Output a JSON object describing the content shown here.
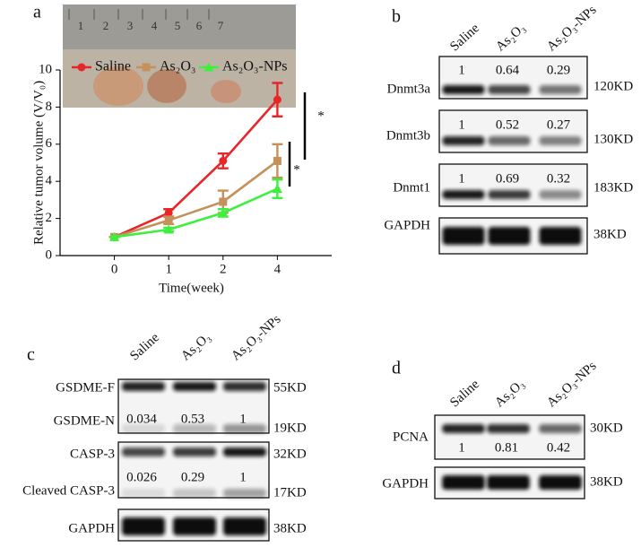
{
  "chart_data": {
    "type": "line",
    "panel_label": "a",
    "categories": [
      "0",
      "1",
      "2",
      "4"
    ],
    "xlabel": "Time(week)",
    "ylabel": "Relative tumor  volume (V/V₀)",
    "ylim": [
      0,
      10
    ],
    "yticks": [
      0,
      2,
      4,
      6,
      8,
      10
    ],
    "legend": "top-left",
    "series": [
      {
        "name": "Saline",
        "color": "#e8262a",
        "marker": "circle",
        "values": [
          1,
          2.3,
          5.1,
          8.4
        ],
        "errors": [
          0,
          0.2,
          0.4,
          0.9
        ]
      },
      {
        "name": "As₂O₃",
        "color": "#c4915a",
        "marker": "square",
        "values": [
          1,
          1.9,
          2.9,
          5.1
        ],
        "errors": [
          0,
          0.2,
          0.6,
          0.9
        ]
      },
      {
        "name": "As₂O₃-NPs",
        "color": "#3ef03e",
        "marker": "triangle",
        "values": [
          1,
          1.4,
          2.3,
          3.6
        ],
        "errors": [
          0,
          0.1,
          0.2,
          0.5
        ]
      }
    ],
    "annotations": [
      "*",
      "*"
    ]
  },
  "photo": {
    "ruler_labels": [
      "1",
      "2",
      "3",
      "4",
      "5",
      "6",
      "7"
    ]
  },
  "blots": [
    {
      "panel_label": "b",
      "lanes": [
        "Saline",
        "As₂O₃",
        "As₂O₃-NPs"
      ],
      "rows": [
        {
          "name": "Dnmt3a",
          "values": [
            1,
            0.64,
            0.29
          ],
          "size": "120KD"
        },
        {
          "name": "Dnmt3b",
          "values": [
            1,
            0.52,
            0.27
          ],
          "size": "130KD"
        },
        {
          "name": "Dnmt1",
          "values": [
            1,
            0.69,
            0.32
          ],
          "size": "183KD"
        },
        {
          "name": "GAPDH",
          "size": "38KD"
        }
      ]
    },
    {
      "panel_label": "c",
      "lanes": [
        "Saline",
        "As₂O₃",
        "As₂O₃-NPs"
      ],
      "rows": [
        {
          "name": "GSDME-F",
          "size": "55KD"
        },
        {
          "name": "GSDME-N",
          "values": [
            0.034,
            0.53,
            1
          ],
          "size": "19KD"
        },
        {
          "name": "CASP-3",
          "size": "32KD"
        },
        {
          "name": "Cleaved CASP-3",
          "values": [
            0.026,
            0.29,
            1
          ],
          "size": "17KD"
        },
        {
          "name": "GAPDH",
          "size": "38KD"
        }
      ]
    },
    {
      "panel_label": "d",
      "lanes": [
        "Saline",
        "As₂O₃",
        "As₂O₃-NPs"
      ],
      "rows": [
        {
          "name": "PCNA",
          "values": [
            1,
            0.81,
            0.42
          ],
          "size": "30KD"
        },
        {
          "name": "GAPDH",
          "size": "38KD"
        }
      ]
    }
  ]
}
